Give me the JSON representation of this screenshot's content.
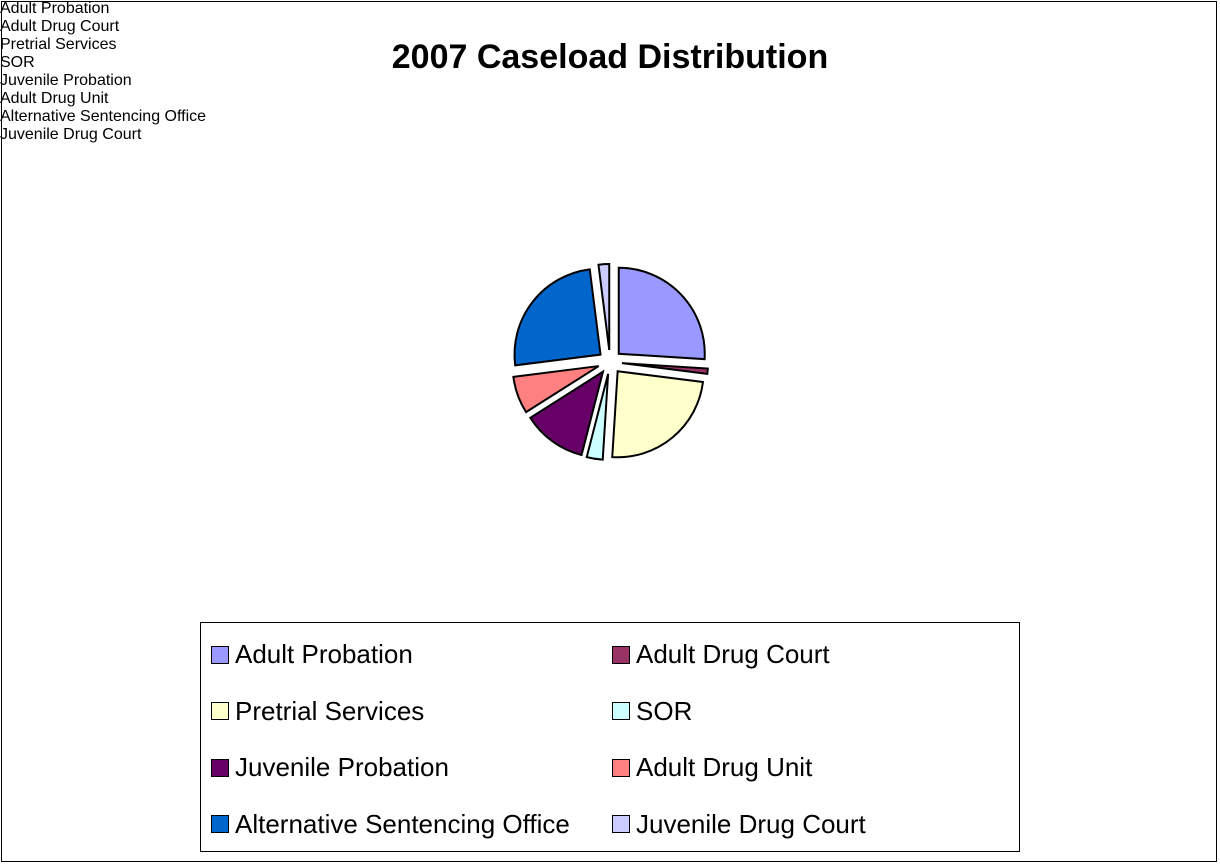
{
  "chart_data": {
    "type": "pie",
    "title": "2007 Caseload Distribution",
    "categories": [
      "Adult Probation",
      "Adult Drug Court",
      "Pretrial Services",
      "SOR",
      "Juvenile Probation",
      "Adult Drug Unit",
      "Alternative Sentencing Office",
      "Juvenile Drug Court"
    ],
    "values": [
      26,
      1,
      24,
      3,
      12,
      7,
      25,
      2
    ],
    "colors": [
      "#9999ff",
      "#993366",
      "#ffffcc",
      "#ccffff",
      "#660066",
      "#ff8080",
      "#0066cc",
      "#ccccff"
    ],
    "legend": "bottom"
  }
}
